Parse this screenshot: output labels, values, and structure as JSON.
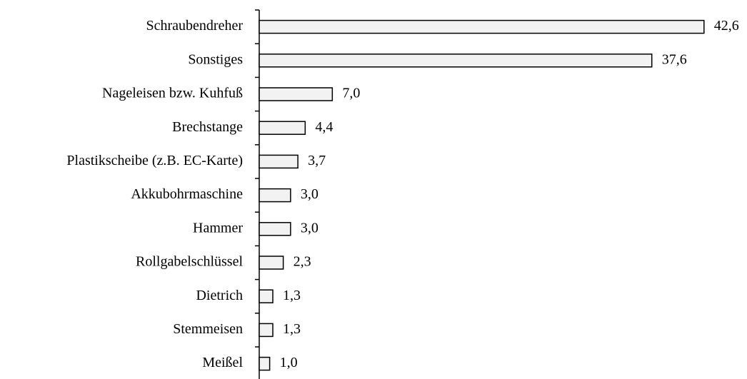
{
  "chart_data": {
    "type": "bar",
    "orientation": "horizontal",
    "categories": [
      "Schraubendreher",
      "Sonstiges",
      "Nageleisen bzw. Kuhfuß",
      "Brechstange",
      "Plastikscheibe (z.B. EC-Karte)",
      "Akkubohrmaschine",
      "Hammer",
      "Rollgabelschlüssel",
      "Dietrich",
      "Stemmeisen",
      "Meißel"
    ],
    "values": [
      42.6,
      37.6,
      7.0,
      4.4,
      3.7,
      3.0,
      3.0,
      2.3,
      1.3,
      1.3,
      1.0
    ],
    "value_labels": [
      "42,6",
      "37,6",
      "7,0",
      "4,4",
      "3,7",
      "3,0",
      "3,0",
      "2,3",
      "1,3",
      "1,3",
      "1,0"
    ],
    "color": "#f2f2f2"
  }
}
